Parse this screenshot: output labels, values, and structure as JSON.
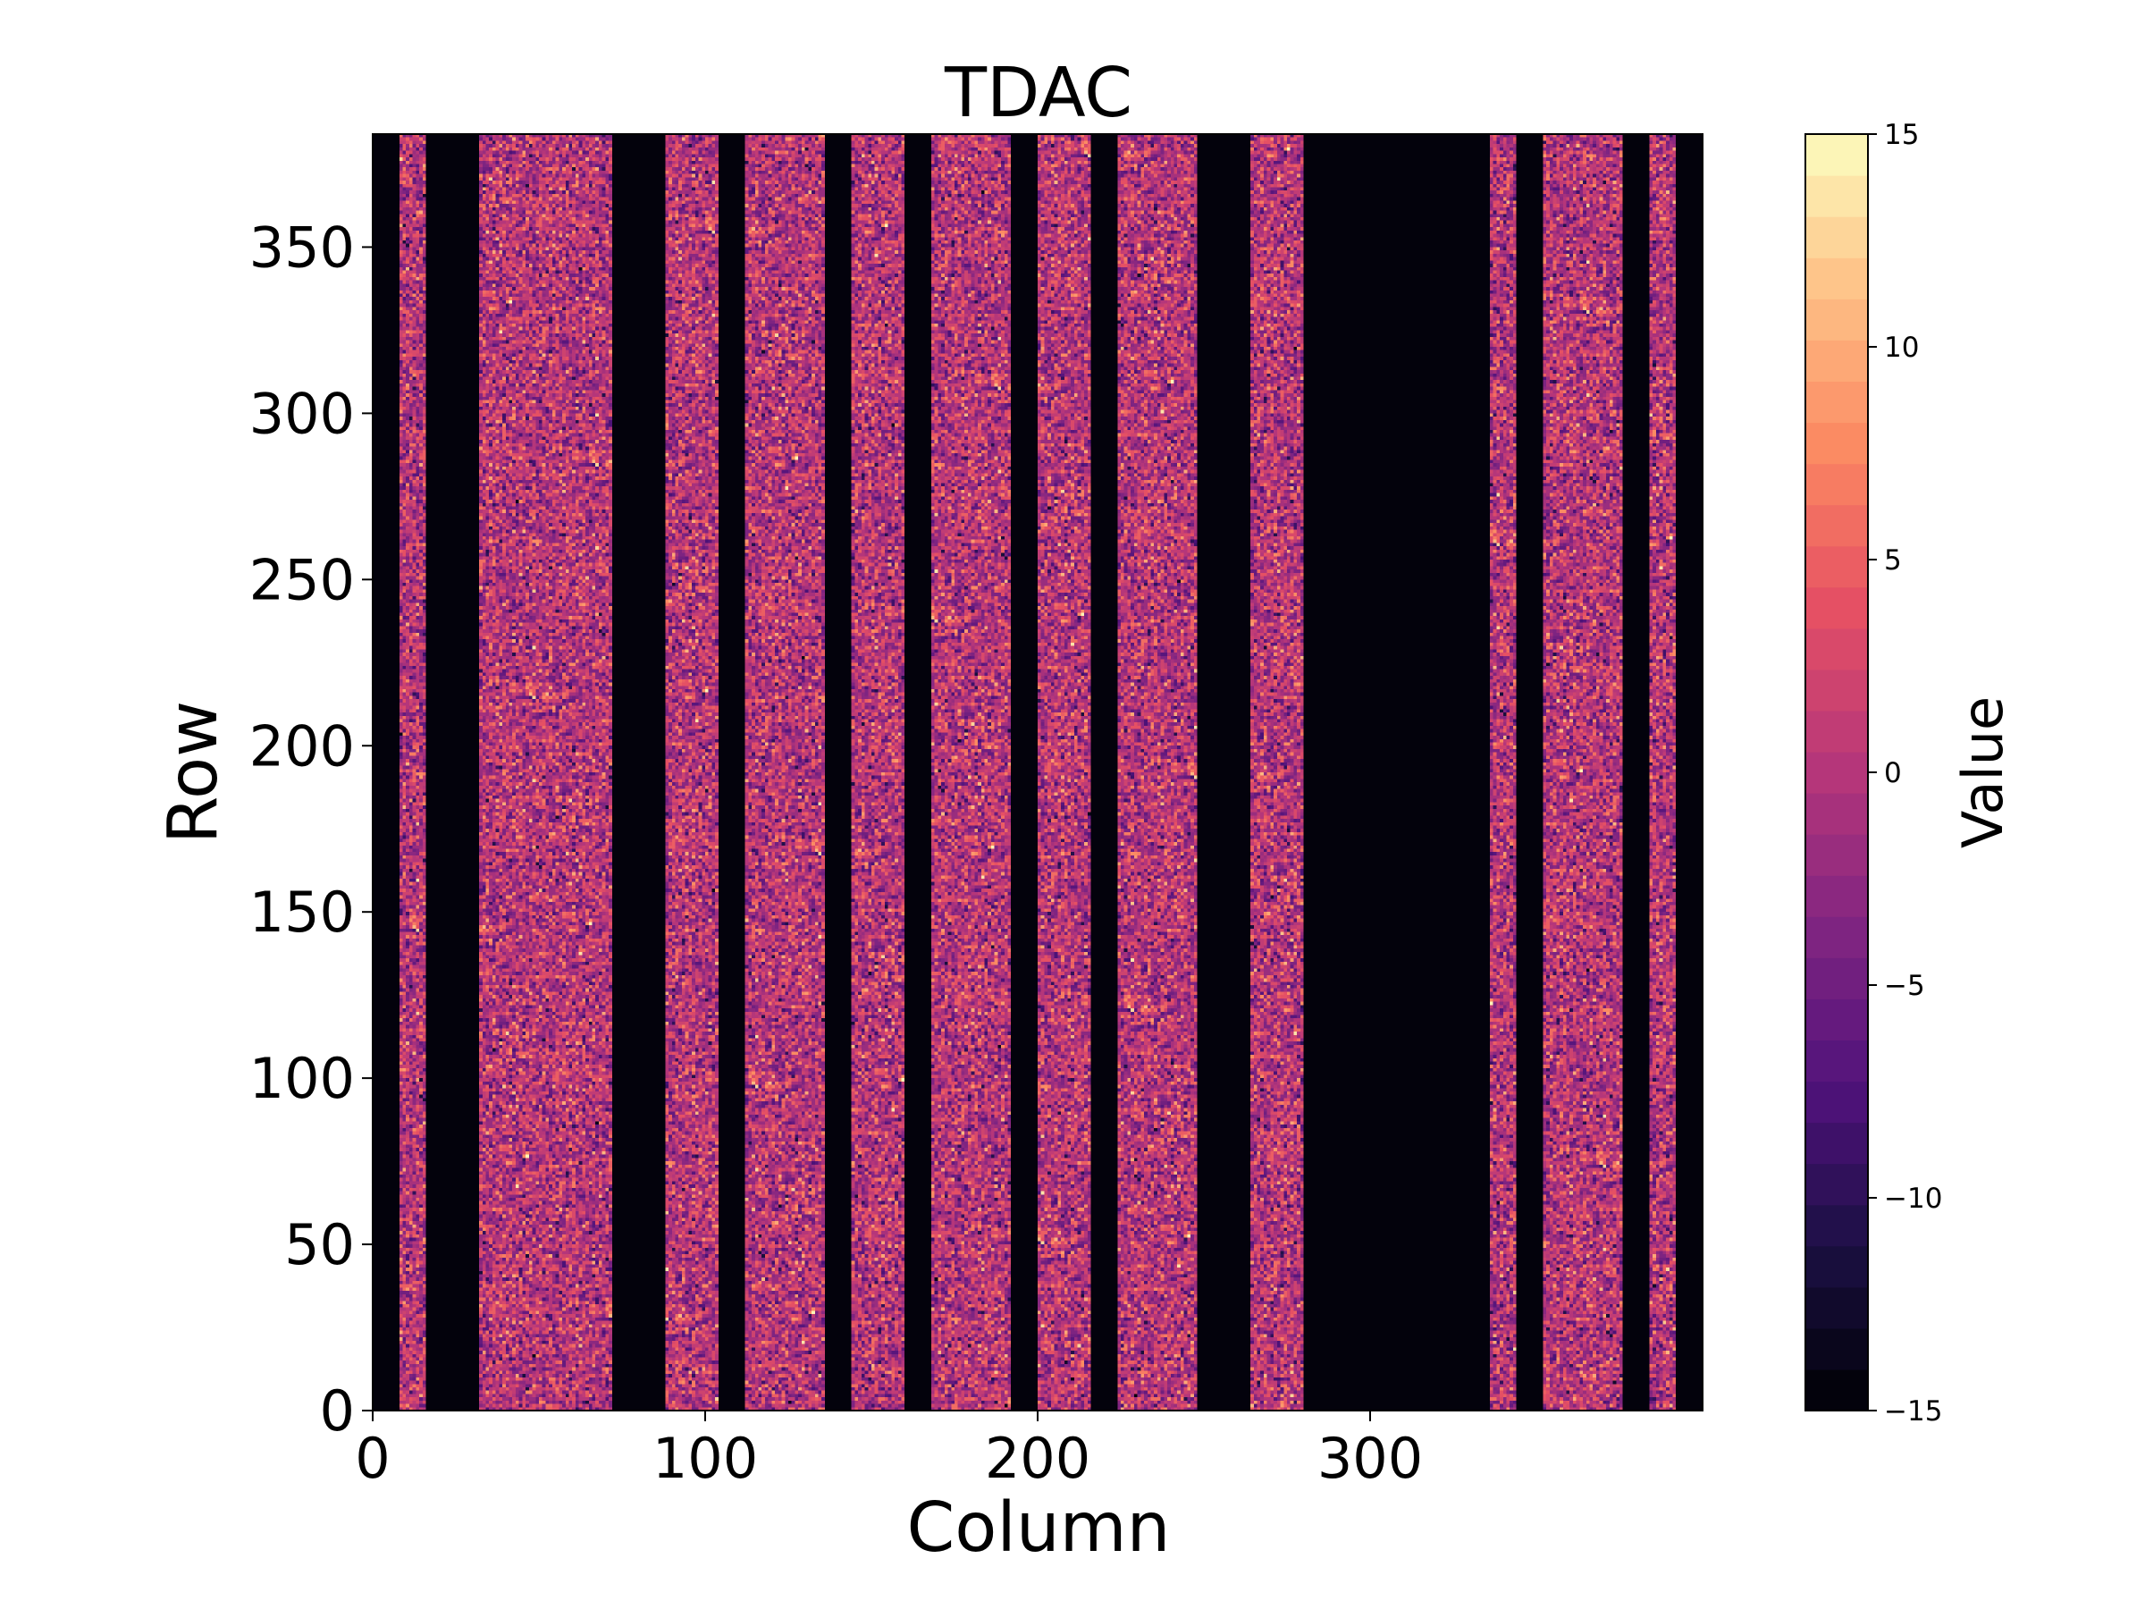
{
  "chart_data": {
    "type": "heatmap",
    "title": "TDAC",
    "xlabel": "Column",
    "ylabel": "Row",
    "xlim": [
      0,
      400
    ],
    "ylim": [
      0,
      384
    ],
    "xticks": [
      0,
      100,
      200,
      300
    ],
    "yticks": [
      0,
      50,
      100,
      150,
      200,
      250,
      300,
      350
    ],
    "colorbar": {
      "label": "Value",
      "min": -15,
      "max": 15,
      "levels": 31,
      "ticks": [
        -15,
        -10,
        -5,
        0,
        5,
        10,
        15
      ],
      "tick_labels": [
        "−15",
        "−10",
        "−5",
        "0",
        "5",
        "10",
        "15"
      ],
      "colormap": "magma"
    },
    "active_column_ranges": [
      [
        8,
        16
      ],
      [
        32,
        72
      ],
      [
        88,
        104
      ],
      [
        112,
        136
      ],
      [
        144,
        160
      ],
      [
        168,
        192
      ],
      [
        200,
        216
      ],
      [
        224,
        248
      ],
      [
        264,
        280
      ],
      [
        336,
        344
      ],
      [
        352,
        376
      ],
      [
        384,
        392
      ]
    ],
    "inactive_value": -15,
    "active_value_distribution": {
      "mean": 0,
      "std": 4,
      "min": -15,
      "max": 15
    }
  }
}
